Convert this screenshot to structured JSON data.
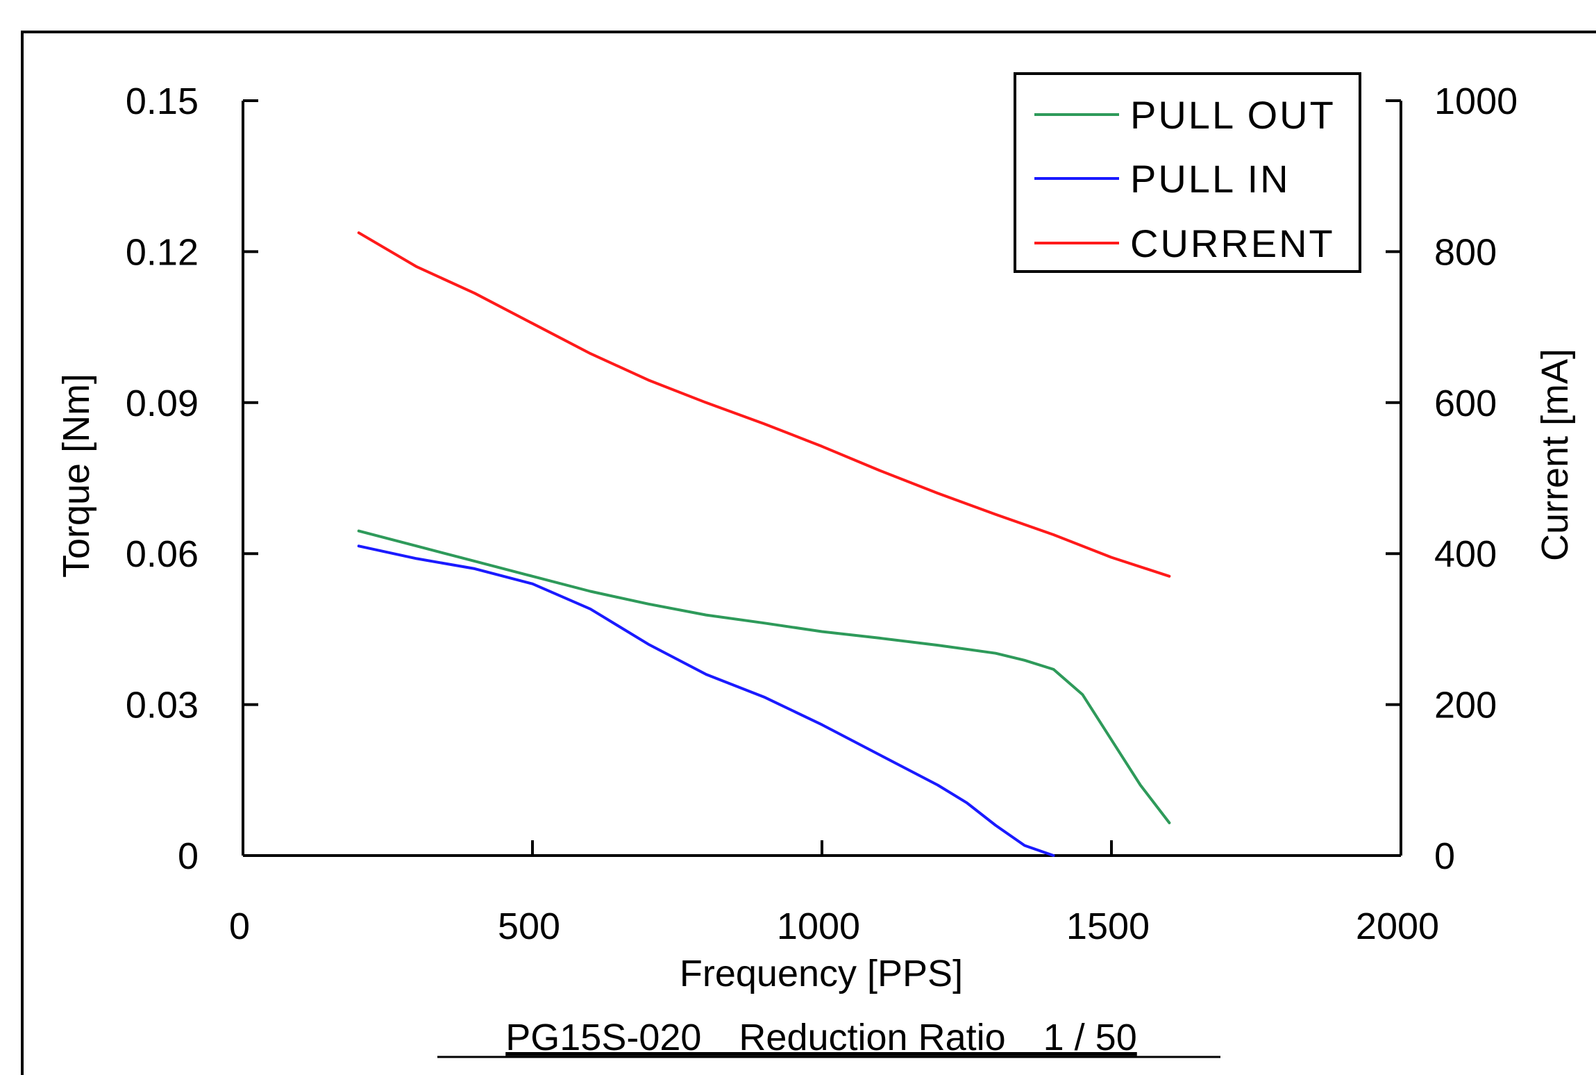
{
  "chart_data": {
    "type": "line",
    "xlabel": "Frequency [PPS]",
    "ylabel_left": "Torque [Nm]",
    "ylabel_right": "Current [mA]",
    "caption": "PG15S-020　Reduction Ratio　1 / 50",
    "xlim": [
      0,
      2000
    ],
    "xticks": [
      "0",
      "500",
      "1000",
      "1500",
      "2000"
    ],
    "ylim_left": [
      0,
      0.15
    ],
    "yticks_left": [
      "0",
      "0.03",
      "0.06",
      "0.09",
      "0.12",
      "0.15"
    ],
    "ylim_right": [
      0,
      1000
    ],
    "yticks_right": [
      "0",
      "200",
      "400",
      "600",
      "800",
      "1000"
    ],
    "grid": false,
    "legend_position": "top-right",
    "series": [
      {
        "name": "PULL OUT",
        "axis": "left",
        "color": "#2e9a5a",
        "x": [
          200,
          300,
          400,
          500,
          600,
          700,
          800,
          900,
          1000,
          1100,
          1200,
          1300,
          1350,
          1400,
          1450,
          1500,
          1550,
          1600
        ],
        "y": [
          0.0645,
          0.0615,
          0.0585,
          0.0555,
          0.0525,
          0.05,
          0.0478,
          0.0462,
          0.0445,
          0.0432,
          0.0418,
          0.0402,
          0.0388,
          0.037,
          0.032,
          0.023,
          0.014,
          0.0065
        ]
      },
      {
        "name": "PULL IN",
        "axis": "left",
        "color": "#1a1aff",
        "x": [
          200,
          300,
          400,
          500,
          600,
          700,
          800,
          900,
          1000,
          1100,
          1200,
          1250,
          1300,
          1350,
          1400
        ],
        "y": [
          0.0615,
          0.059,
          0.057,
          0.054,
          0.049,
          0.042,
          0.036,
          0.0315,
          0.026,
          0.02,
          0.014,
          0.0105,
          0.006,
          0.002,
          0.0
        ]
      },
      {
        "name": "CURRENT",
        "axis": "right",
        "color": "#ff1a1a",
        "x": [
          200,
          300,
          400,
          500,
          600,
          700,
          800,
          900,
          1000,
          1100,
          1200,
          1300,
          1400,
          1500,
          1600
        ],
        "y": [
          825,
          780,
          745,
          705,
          665,
          630,
          600,
          572,
          542,
          510,
          480,
          452,
          425,
          395,
          370
        ]
      }
    ]
  }
}
